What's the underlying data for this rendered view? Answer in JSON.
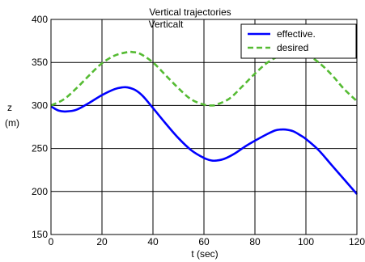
{
  "chart_data": {
    "type": "line",
    "title": "Vertical trajectories",
    "title_ghost": "Verticalt",
    "xlabel": "t (sec)",
    "ylabel": [
      "z",
      "(m)"
    ],
    "xlim": [
      0,
      120
    ],
    "ylim": [
      150,
      400
    ],
    "xticks": [
      0,
      20,
      40,
      60,
      80,
      100,
      120
    ],
    "yticks": [
      150,
      200,
      250,
      300,
      350,
      400
    ],
    "grid": true,
    "legend_position": "top-right",
    "series": [
      {
        "name": "effective.",
        "color": "#0000ff",
        "style": "solid",
        "x": [
          0,
          3,
          6,
          10,
          15,
          20,
          25,
          28,
          30,
          33,
          36,
          40,
          45,
          50,
          55,
          60,
          63,
          65,
          68,
          72,
          76,
          80,
          85,
          88,
          90,
          92,
          95,
          98,
          100,
          105,
          110,
          115,
          120
        ],
        "y": [
          299,
          294,
          293,
          295,
          303,
          312,
          319,
          321,
          321,
          318,
          311,
          297,
          279,
          262,
          248,
          239,
          236,
          236,
          238,
          244,
          252,
          259,
          267,
          271,
          272,
          272,
          270,
          265,
          261,
          248,
          231,
          214,
          197
        ]
      },
      {
        "name": "desired",
        "color": "#55bb33",
        "style": "dashed",
        "x": [
          0,
          5,
          10,
          15,
          20,
          25,
          30,
          32,
          35,
          40,
          45,
          50,
          55,
          60,
          63,
          65,
          70,
          75,
          80,
          85,
          90,
          95,
          97,
          100,
          105,
          110,
          115,
          120
        ],
        "y": [
          300,
          307,
          320,
          335,
          349,
          358,
          362,
          362,
          360,
          350,
          335,
          320,
          307,
          301,
          300,
          301,
          308,
          322,
          337,
          350,
          358,
          362,
          362,
          360,
          350,
          336,
          319,
          305
        ]
      }
    ]
  }
}
